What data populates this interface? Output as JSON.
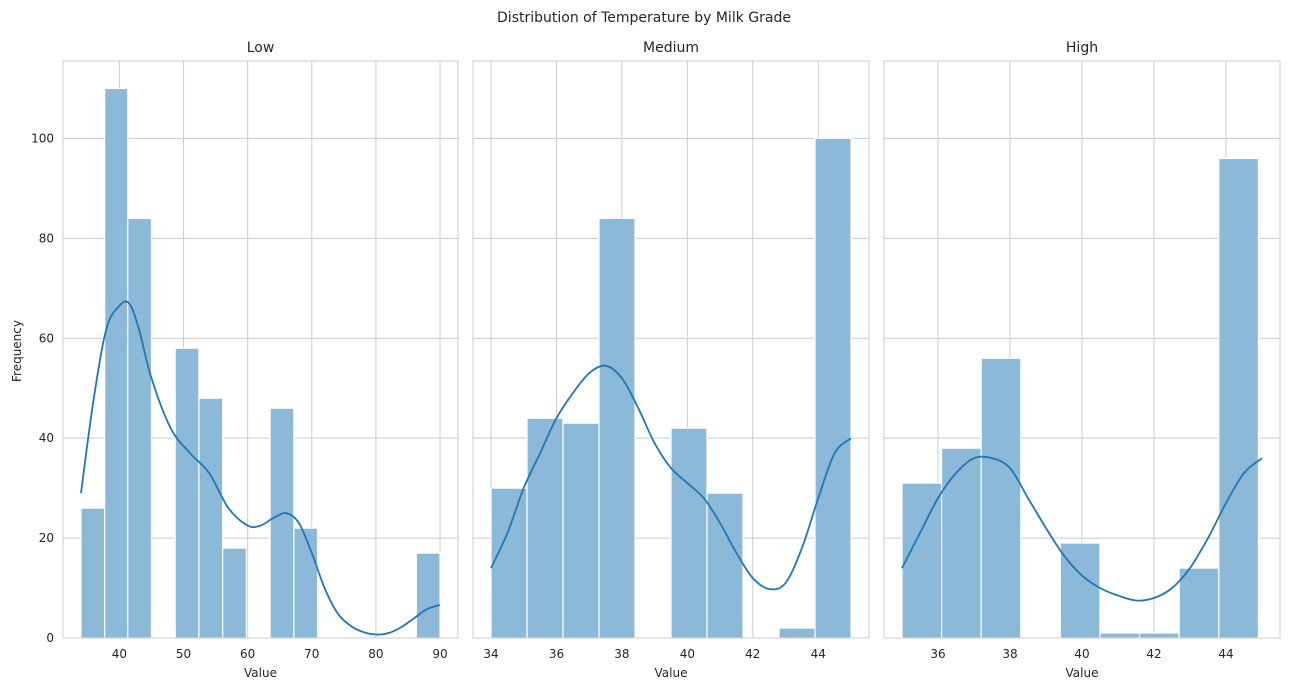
{
  "suptitle": "Distribution of Temperature by Milk Grade",
  "ylabel": "Frequency",
  "colors": {
    "bar": "#8db9d9",
    "kde": "#1f77b4",
    "grid": "#cccccc",
    "frame": "#cccccc"
  },
  "chart_data": [
    {
      "type": "bar",
      "title": "Low",
      "xlabel": "Value",
      "ylabel": "Frequency",
      "xlim": [
        31.2,
        92.8
      ],
      "ylim": [
        0,
        115.5
      ],
      "xticks": [
        40,
        50,
        60,
        70,
        80,
        90
      ],
      "yticks": [
        0,
        20,
        40,
        60,
        80,
        100
      ],
      "bins": [
        {
          "x0": 34.0,
          "x1": 37.7,
          "count": 26
        },
        {
          "x0": 37.7,
          "x1": 41.3,
          "count": 110
        },
        {
          "x0": 41.3,
          "x1": 45.0,
          "count": 84
        },
        {
          "x0": 48.7,
          "x1": 52.4,
          "count": 58
        },
        {
          "x0": 52.4,
          "x1": 56.1,
          "count": 48
        },
        {
          "x0": 56.1,
          "x1": 59.8,
          "count": 18
        },
        {
          "x0": 63.5,
          "x1": 67.2,
          "count": 46
        },
        {
          "x0": 67.2,
          "x1": 70.9,
          "count": 22
        },
        {
          "x0": 86.3,
          "x1": 90.0,
          "count": 17
        }
      ],
      "kde": [
        [
          34,
          29
        ],
        [
          36,
          48
        ],
        [
          38,
          62
        ],
        [
          40,
          66.5
        ],
        [
          41.5,
          67
        ],
        [
          43,
          62
        ],
        [
          45,
          52
        ],
        [
          48,
          42
        ],
        [
          51,
          37
        ],
        [
          54,
          33
        ],
        [
          57,
          26
        ],
        [
          60,
          22.5
        ],
        [
          62,
          22.5
        ],
        [
          64,
          24
        ],
        [
          66,
          25
        ],
        [
          68,
          23
        ],
        [
          70,
          17
        ],
        [
          72,
          10
        ],
        [
          74,
          5
        ],
        [
          76,
          2.5
        ],
        [
          78,
          1.2
        ],
        [
          80,
          0.7
        ],
        [
          82,
          1
        ],
        [
          84,
          2.2
        ],
        [
          86,
          4
        ],
        [
          88,
          5.8
        ],
        [
          90,
          6.6
        ]
      ]
    },
    {
      "type": "bar",
      "title": "Medium",
      "xlabel": "Value",
      "xlim": [
        33.45,
        45.55
      ],
      "ylim": [
        0,
        115.5
      ],
      "xticks": [
        34,
        36,
        38,
        40,
        42,
        44
      ],
      "yticks": [
        0,
        20,
        40,
        60,
        80,
        100
      ],
      "bins": [
        {
          "x0": 34.0,
          "x1": 35.1,
          "count": 30
        },
        {
          "x0": 35.1,
          "x1": 36.2,
          "count": 44
        },
        {
          "x0": 36.2,
          "x1": 37.3,
          "count": 43
        },
        {
          "x0": 37.3,
          "x1": 38.4,
          "count": 84
        },
        {
          "x0": 39.5,
          "x1": 40.6,
          "count": 42
        },
        {
          "x0": 40.6,
          "x1": 41.7,
          "count": 29
        },
        {
          "x0": 42.8,
          "x1": 43.9,
          "count": 2
        },
        {
          "x0": 43.9,
          "x1": 45.0,
          "count": 100
        }
      ],
      "kde": [
        [
          34,
          14
        ],
        [
          34.5,
          21
        ],
        [
          35,
          30
        ],
        [
          35.5,
          37
        ],
        [
          36,
          44
        ],
        [
          36.5,
          49
        ],
        [
          37,
          53
        ],
        [
          37.5,
          54.5
        ],
        [
          38,
          52
        ],
        [
          38.5,
          46
        ],
        [
          39,
          39
        ],
        [
          39.5,
          34
        ],
        [
          40,
          31
        ],
        [
          40.5,
          28
        ],
        [
          41,
          23
        ],
        [
          41.5,
          17
        ],
        [
          42,
          12
        ],
        [
          42.5,
          9.8
        ],
        [
          43,
          11
        ],
        [
          43.5,
          18
        ],
        [
          44,
          28
        ],
        [
          44.5,
          37
        ],
        [
          45,
          40
        ]
      ]
    },
    {
      "type": "bar",
      "title": "High",
      "xlabel": "Value",
      "xlim": [
        34.5,
        45.5
      ],
      "ylim": [
        0,
        115.5
      ],
      "xticks": [
        36,
        38,
        40,
        42,
        44
      ],
      "yticks": [
        0,
        20,
        40,
        60,
        80,
        100
      ],
      "bins": [
        {
          "x0": 35.0,
          "x1": 36.1,
          "count": 31
        },
        {
          "x0": 36.1,
          "x1": 37.2,
          "count": 38
        },
        {
          "x0": 37.2,
          "x1": 38.3,
          "count": 56
        },
        {
          "x0": 39.4,
          "x1": 40.5,
          "count": 19
        },
        {
          "x0": 40.5,
          "x1": 41.6,
          "count": 1
        },
        {
          "x0": 41.6,
          "x1": 42.7,
          "count": 1
        },
        {
          "x0": 42.7,
          "x1": 43.8,
          "count": 14
        },
        {
          "x0": 43.8,
          "x1": 44.9,
          "count": 96
        }
      ],
      "kde": [
        [
          35,
          14
        ],
        [
          35.5,
          21
        ],
        [
          36,
          28
        ],
        [
          36.5,
          33
        ],
        [
          37,
          36
        ],
        [
          37.5,
          36
        ],
        [
          38,
          34
        ],
        [
          38.5,
          28
        ],
        [
          39,
          22
        ],
        [
          39.5,
          16.5
        ],
        [
          40,
          12.5
        ],
        [
          40.5,
          10
        ],
        [
          41,
          8.5
        ],
        [
          41.5,
          7.5
        ],
        [
          42,
          8
        ],
        [
          42.5,
          10
        ],
        [
          43,
          14
        ],
        [
          43.5,
          20
        ],
        [
          44,
          27
        ],
        [
          44.5,
          33
        ],
        [
          45,
          36
        ]
      ]
    }
  ]
}
